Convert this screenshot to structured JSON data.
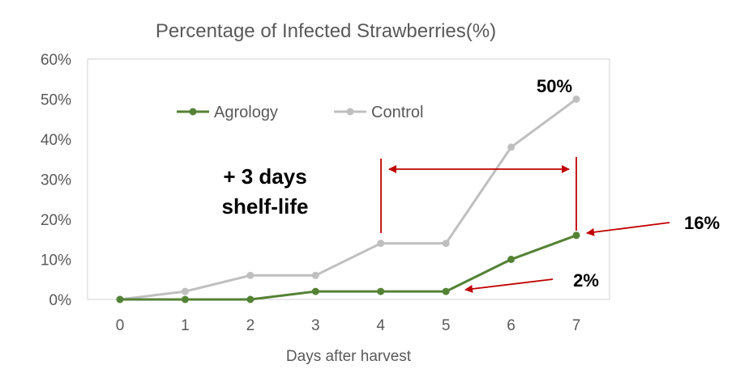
{
  "chart_data": {
    "type": "line",
    "title": "Percentage of Infected Strawberries(%)",
    "xlabel": "Days after harvest",
    "ylabel": "",
    "x": [
      0,
      1,
      2,
      3,
      4,
      5,
      6,
      7
    ],
    "ylim": [
      0,
      60
    ],
    "yticks": [
      "0%",
      "10%",
      "20%",
      "30%",
      "40%",
      "50%",
      "60%"
    ],
    "grid": false,
    "legend_position": "top-left",
    "series": [
      {
        "name": "Agrology",
        "color": "#548235",
        "values": [
          0,
          0,
          0,
          2,
          2,
          2,
          10,
          16
        ]
      },
      {
        "name": "Control",
        "color": "#BFBFBF",
        "values": [
          0,
          2,
          6,
          6,
          14,
          14,
          38,
          50
        ]
      }
    ],
    "annotations": {
      "shelf_life_line1": "+ 3 days",
      "shelf_life_line2": "shelf-life",
      "control_end_label": "50%",
      "agrology_end_label": "16%",
      "agrology_plateau_label": "2%"
    },
    "annotation_color": "#C00000"
  }
}
